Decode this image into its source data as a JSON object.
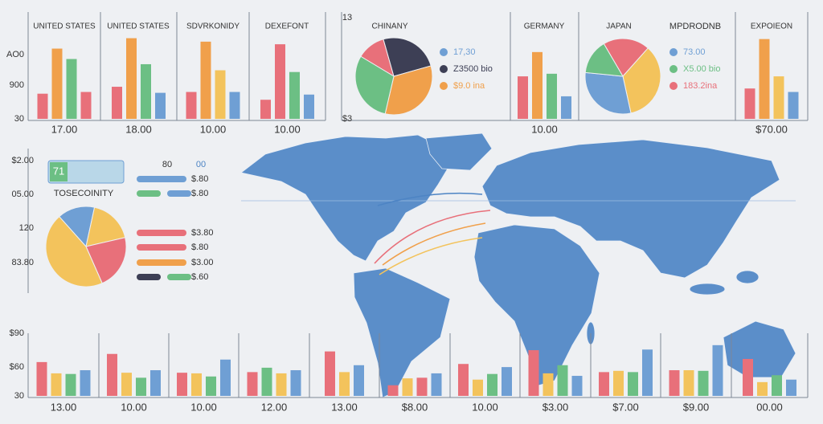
{
  "chart_data": [
    {
      "type": "bar",
      "title": "UNITED STATES",
      "caption": "17.00",
      "ylim": [
        0,
        100
      ],
      "values": [
        29,
        81,
        69,
        31
      ],
      "colors": [
        "#e8707a",
        "#f0a04b",
        "#6cbf84",
        "#e8707a"
      ]
    },
    {
      "type": "bar",
      "title": "UNITED STATES",
      "caption": "18.00",
      "ylim": [
        0,
        100
      ],
      "values": [
        37,
        93,
        63,
        30
      ],
      "colors": [
        "#e8707a",
        "#f0a04b",
        "#6cbf84",
        "#6f9fd4"
      ]
    },
    {
      "type": "bar",
      "title": "SDVRKONIDY",
      "caption": "10.00",
      "ylim": [
        0,
        100
      ],
      "values": [
        31,
        89,
        56,
        31
      ],
      "colors": [
        "#e8707a",
        "#f0a04b",
        "#f3c35c",
        "#6f9fd4"
      ]
    },
    {
      "type": "bar",
      "title": "DEXEFONT",
      "caption": "10.00",
      "ylim": [
        0,
        100
      ],
      "values": [
        22,
        86,
        54,
        28
      ],
      "colors": [
        "#e8707a",
        "#e8707a",
        "#6cbf84",
        "#6f9fd4"
      ]
    },
    {
      "type": "pie",
      "title": "CHINANY",
      "values": [
        12,
        25,
        33,
        30
      ],
      "colors": [
        "#e8707a",
        "#3d3f55",
        "#f0a04b",
        "#6cbf84"
      ],
      "legend": [
        {
          "label": "17,30",
          "color": "#6f9fd4"
        },
        {
          "label": "Z3500 bio",
          "color": "#3d3f55"
        },
        {
          "label": "$9.0 ina",
          "color": "#f0a04b"
        }
      ]
    },
    {
      "type": "bar",
      "title": "GERMANY",
      "caption": "10.00",
      "ylim": [
        0,
        100
      ],
      "values": [
        49,
        77,
        52,
        26
      ],
      "colors": [
        "#e8707a",
        "#f0a04b",
        "#6cbf84",
        "#6f9fd4"
      ]
    },
    {
      "type": "pie",
      "title": "JAPAN",
      "values": [
        20,
        35,
        30,
        15
      ],
      "colors": [
        "#e8707a",
        "#f3c35c",
        "#6f9fd4",
        "#6cbf84"
      ],
      "legend": [
        {
          "label": "73.00",
          "color": "#6f9fd4"
        },
        {
          "label": "X5.00 bio",
          "color": "#6cbf84"
        },
        {
          "label": "183.2ina",
          "color": "#e8707a"
        }
      ]
    },
    {
      "type": "bar",
      "title": "EXPOIEON",
      "caption": "$70.00",
      "ylim": [
        0,
        100
      ],
      "values": [
        35,
        92,
        49,
        31
      ],
      "colors": [
        "#e8707a",
        "#f0a04b",
        "#f3c35c",
        "#6f9fd4"
      ]
    },
    {
      "type": "pie",
      "values": [
        15,
        18,
        22,
        45
      ],
      "colors": [
        "#6f9fd4",
        "#f3c35c",
        "#e8707a",
        "#f3c35c"
      ],
      "legend": [
        {
          "label": "$3.80",
          "colors": [
            "#e8707a"
          ]
        },
        {
          "label": "$.80",
          "colors": [
            "#e8707a"
          ]
        },
        {
          "label": "$3.00",
          "colors": [
            "#f0a04b"
          ]
        },
        {
          "label": "$.60",
          "colors": [
            "#3d3f55",
            "#6cbf84"
          ]
        }
      ]
    },
    {
      "type": "bar",
      "caption": "13.00",
      "ylim": [
        0,
        100
      ],
      "values": [
        54,
        36,
        35,
        41
      ],
      "colors": [
        "#e8707a",
        "#f3c35c",
        "#6cbf84",
        "#6f9fd4"
      ]
    },
    {
      "type": "bar",
      "caption": "10.00",
      "ylim": [
        0,
        100
      ],
      "values": [
        67,
        37,
        29,
        41
      ],
      "colors": [
        "#e8707a",
        "#f3c35c",
        "#6cbf84",
        "#6f9fd4"
      ]
    },
    {
      "type": "bar",
      "caption": "10.00",
      "ylim": [
        0,
        100
      ],
      "values": [
        37,
        36,
        31,
        58
      ],
      "colors": [
        "#e8707a",
        "#f3c35c",
        "#6cbf84",
        "#6f9fd4"
      ]
    },
    {
      "type": "bar",
      "caption": "12.00",
      "ylim": [
        0,
        100
      ],
      "values": [
        38,
        45,
        36,
        41
      ],
      "colors": [
        "#e8707a",
        "#6cbf84",
        "#f3c35c",
        "#6f9fd4"
      ]
    },
    {
      "type": "bar",
      "caption": "13.00",
      "ylim": [
        0,
        100
      ],
      "values": [
        71,
        38,
        49
      ],
      "colors": [
        "#e8707a",
        "#f3c35c",
        "#6f9fd4"
      ]
    },
    {
      "type": "bar",
      "caption": "$8.00",
      "ylim": [
        0,
        100
      ],
      "values": [
        17,
        28,
        29,
        36
      ],
      "colors": [
        "#e8707a",
        "#f3c35c",
        "#e8707a",
        "#6f9fd4"
      ]
    },
    {
      "type": "bar",
      "caption": "10.00",
      "ylim": [
        0,
        100
      ],
      "values": [
        51,
        26,
        35,
        46
      ],
      "colors": [
        "#e8707a",
        "#f3c35c",
        "#6cbf84",
        "#6f9fd4"
      ]
    },
    {
      "type": "bar",
      "caption": "$3.00",
      "ylim": [
        0,
        100
      ],
      "values": [
        73,
        36,
        49,
        32
      ],
      "colors": [
        "#e8707a",
        "#f3c35c",
        "#6cbf84",
        "#6f9fd4"
      ]
    },
    {
      "type": "bar",
      "caption": "$7.00",
      "ylim": [
        0,
        100
      ],
      "values": [
        38,
        40,
        38,
        74
      ],
      "colors": [
        "#e8707a",
        "#f3c35c",
        "#6cbf84",
        "#6f9fd4"
      ]
    },
    {
      "type": "bar",
      "caption": "$9.00",
      "ylim": [
        0,
        100
      ],
      "values": [
        41,
        41,
        40,
        81
      ],
      "colors": [
        "#e8707a",
        "#f3c35c",
        "#6cbf84",
        "#6f9fd4"
      ]
    },
    {
      "type": "bar",
      "caption": "00.00",
      "ylim": [
        0,
        100
      ],
      "values": [
        59,
        22,
        33,
        26
      ],
      "colors": [
        "#e8707a",
        "#f3c35c",
        "#6cbf84",
        "#6f9fd4"
      ]
    }
  ],
  "top_left_axis": [
    "AO0",
    "900",
    "30"
  ],
  "top_middle_axis": [
    "13",
    "$3"
  ],
  "side_axis": [
    "$2.00",
    "05.00",
    "120",
    "83.80"
  ],
  "bottom_axis": [
    "$90",
    "$60",
    "30"
  ],
  "top_right_subtitle": "MPDRODNB",
  "badge": "71",
  "badge_label": "TOSECOINITY",
  "legend_header": [
    "80",
    "00"
  ],
  "legend_rows": [
    {
      "label": "$.80",
      "colors": [
        "#6f9fd4"
      ]
    },
    {
      "label": "$.80",
      "colors": [
        "#6cbf84",
        "#6f9fd4"
      ]
    }
  ]
}
